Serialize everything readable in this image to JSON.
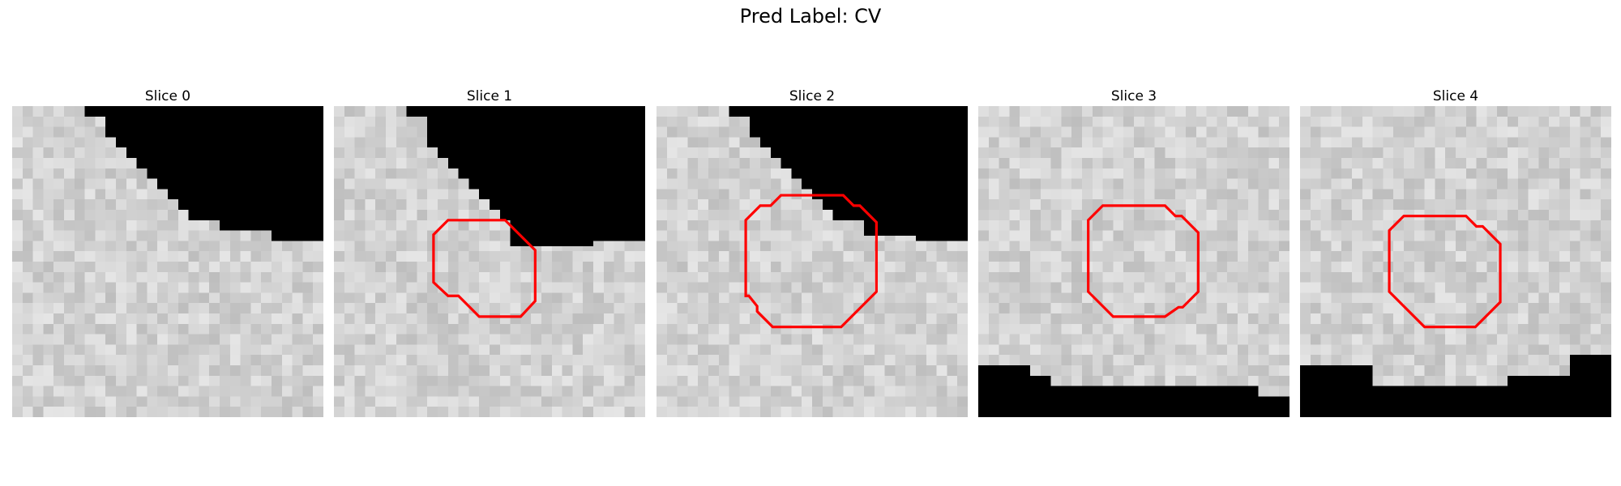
{
  "figure": {
    "title": "Pred Label: CV"
  },
  "slices": [
    {
      "title": "Slice 0",
      "has_contour": false,
      "black_region": "top-left"
    },
    {
      "title": "Slice 1",
      "has_contour": true,
      "black_region": "top-left"
    },
    {
      "title": "Slice 2",
      "has_contour": true,
      "black_region": "top-left"
    },
    {
      "title": "Slice 3",
      "has_contour": true,
      "black_region": "bottom"
    },
    {
      "title": "Slice 4",
      "has_contour": true,
      "black_region": "bottom"
    }
  ],
  "colors": {
    "contour": "#ff0000",
    "background": "#000000"
  }
}
